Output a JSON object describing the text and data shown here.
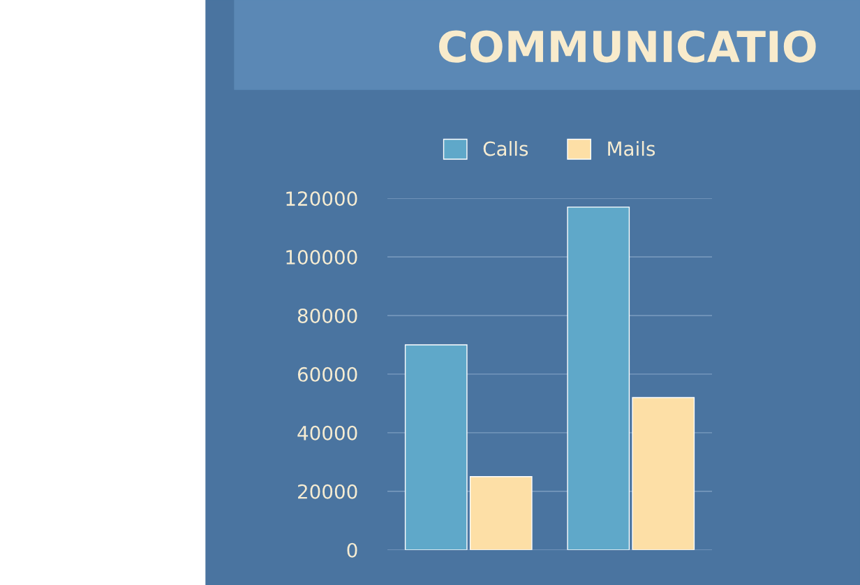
{
  "chart_data": {
    "type": "bar",
    "title": "COMMUNICATIO",
    "categories": [
      null,
      null
    ],
    "series": [
      {
        "name": "Calls",
        "color": "#5fa8c9",
        "values": [
          70000,
          117000
        ]
      },
      {
        "name": "Mails",
        "color": "#fddfa6",
        "values": [
          25000,
          52000
        ]
      }
    ],
    "ylim": [
      0,
      120000
    ],
    "yticks": [
      0,
      20000,
      40000,
      60000,
      80000,
      100000,
      120000
    ],
    "grid": "y",
    "legend": "top",
    "tick_labels": "y"
  }
}
